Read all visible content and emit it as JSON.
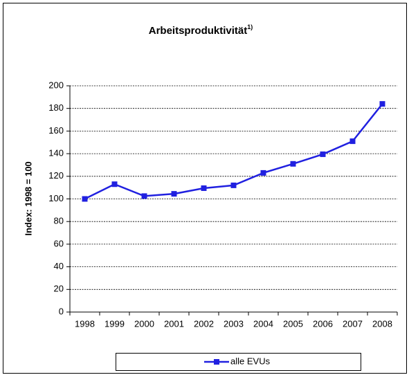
{
  "chart_data": {
    "type": "line",
    "title": "Arbeitsproduktivität",
    "title_note": "1)",
    "y_label": "Index: 1998 = 100",
    "categories": [
      "1998",
      "1999",
      "2000",
      "2001",
      "2002",
      "2003",
      "2004",
      "2005",
      "2006",
      "2007",
      "2008"
    ],
    "series": [
      {
        "name": "alle EVUs",
        "color": "#2020e0",
        "values": [
          100,
          113,
          102.5,
          104.5,
          109.5,
          112,
          123,
          131,
          139.5,
          151,
          184
        ]
      }
    ],
    "ylim": [
      0,
      200
    ],
    "yticks": [
      0,
      20,
      40,
      60,
      80,
      100,
      120,
      140,
      160,
      180,
      200
    ],
    "grid": true,
    "legend": "bottom"
  }
}
